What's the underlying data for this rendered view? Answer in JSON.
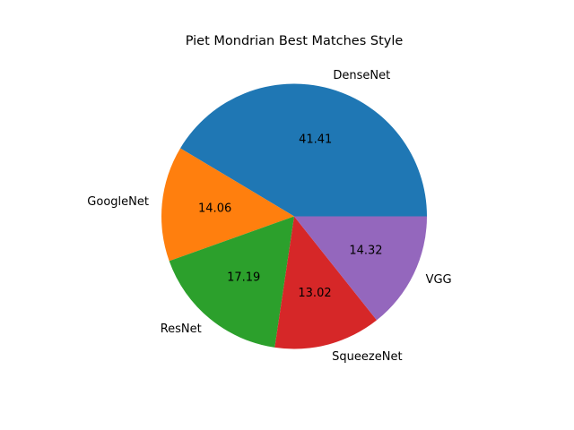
{
  "chart_data": {
    "type": "pie",
    "title": "Piet Mondrian Best Matches Style",
    "labels": [
      "DenseNet",
      "GoogleNet",
      "ResNet",
      "SqueezeNet",
      "VGG"
    ],
    "values": [
      41.41,
      14.06,
      17.19,
      13.02,
      14.32
    ],
    "value_labels": [
      "41.41",
      "14.06",
      "17.19",
      "13.02",
      "14.32"
    ],
    "colors": [
      "#1f77b4",
      "#ff7f0e",
      "#2ca02c",
      "#d62728",
      "#9467bd"
    ],
    "start_angle": 0,
    "direction": "counterclockwise",
    "legend": "none"
  }
}
